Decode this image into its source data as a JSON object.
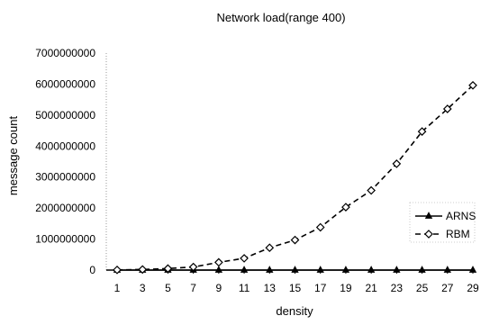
{
  "chart_data": {
    "type": "line",
    "title": "Network load(range 400)",
    "xlabel": "density",
    "ylabel": "message count",
    "x": [
      1,
      3,
      5,
      7,
      9,
      11,
      13,
      15,
      17,
      19,
      21,
      23,
      25,
      27,
      29
    ],
    "ylim": [
      0,
      7000000000
    ],
    "yticks": [
      0,
      1000000000,
      2000000000,
      3000000000,
      4000000000,
      5000000000,
      6000000000,
      7000000000
    ],
    "grid": false,
    "legend_position": "right",
    "series": [
      {
        "name": "ARNS",
        "marker": "triangle",
        "line_style": "solid",
        "color": "#000000",
        "values": [
          0,
          0,
          0,
          0,
          0,
          0,
          0,
          0,
          0,
          0,
          0,
          0,
          0,
          0,
          0
        ]
      },
      {
        "name": "RBM",
        "marker": "diamond",
        "line_style": "dashed",
        "color": "#000000",
        "values": [
          5000000,
          20000000,
          50000000,
          100000000,
          250000000,
          380000000,
          720000000,
          970000000,
          1380000000,
          2030000000,
          2570000000,
          3430000000,
          4470000000,
          5200000000,
          5960000000
        ]
      }
    ]
  }
}
